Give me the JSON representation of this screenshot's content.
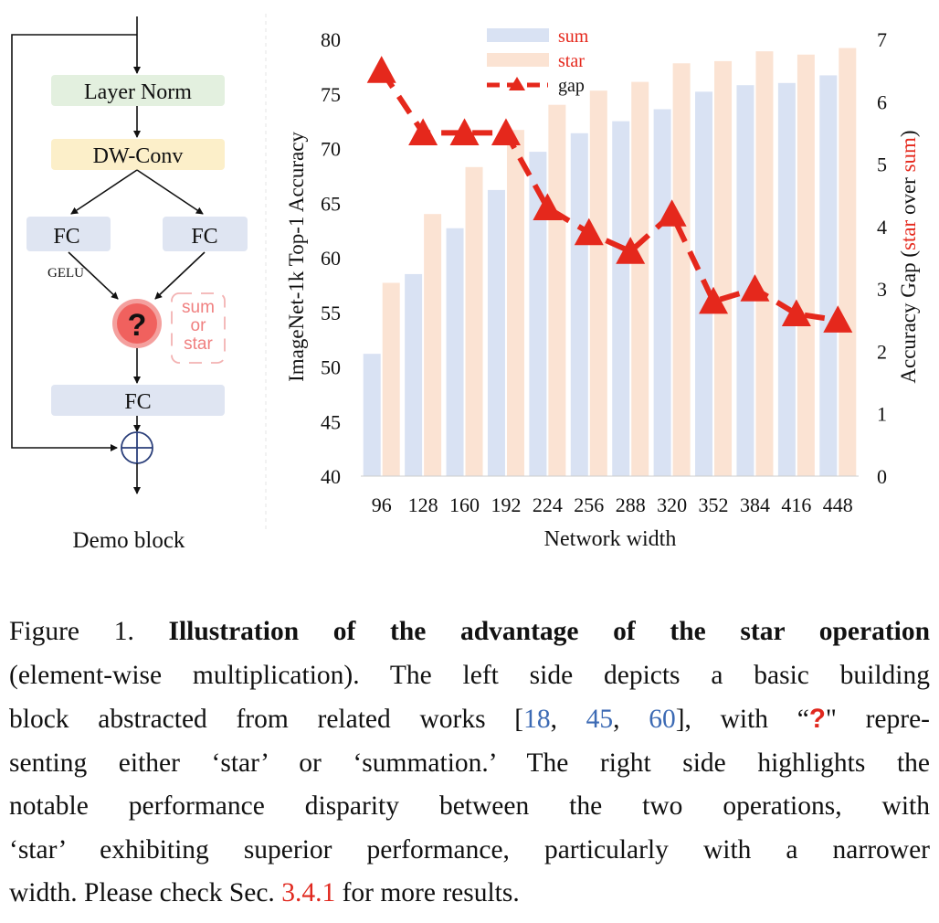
{
  "block": {
    "layer_norm": "Layer Norm",
    "dw_conv": "DW-Conv",
    "fc_left": "FC",
    "fc_right": "FC",
    "gelu": "GELU",
    "op_symbol": "?",
    "op_options": [
      "sum",
      "or",
      "star"
    ],
    "fc_bottom": "FC",
    "caption": "Demo block",
    "colors": {
      "layer_norm": "#e3f0df",
      "dw_conv": "#fcefc9",
      "fc": "#dfe5f2",
      "op": "#f0615e",
      "op_options": "#f08080"
    }
  },
  "chart_data": {
    "type": "bar",
    "categories": [
      "96",
      "128",
      "160",
      "192",
      "224",
      "256",
      "288",
      "320",
      "352",
      "384",
      "416",
      "448"
    ],
    "xlabel": "Network width",
    "ylabel": "ImageNet-1k Top-1 Accuracy",
    "ylim": [
      40,
      80
    ],
    "yticks": [
      "40",
      "45",
      "50",
      "55",
      "60",
      "65",
      "70",
      "75",
      "80"
    ],
    "y2label_parts": [
      "Accuracy Gap (",
      "star",
      " over ",
      "sum",
      ")"
    ],
    "y2lim": [
      0,
      7
    ],
    "y2ticks": [
      "0",
      "1",
      "2",
      "3",
      "4",
      "5",
      "6",
      "7"
    ],
    "legend_position": "top-center",
    "series": [
      {
        "name": "sum",
        "kind": "bar",
        "color": "#d9e2f3",
        "values": [
          51.2,
          58.5,
          62.7,
          66.2,
          69.7,
          71.4,
          72.5,
          73.6,
          75.2,
          75.8,
          76.0,
          76.7
        ]
      },
      {
        "name": "star",
        "kind": "bar",
        "color": "#fbe3d3",
        "values": [
          57.7,
          64.0,
          68.3,
          71.7,
          74.0,
          75.3,
          76.1,
          77.8,
          78.0,
          78.9,
          78.6,
          79.2
        ]
      },
      {
        "name": "gap",
        "kind": "line",
        "color": "#e5281c",
        "axis": "right",
        "values": [
          6.5,
          5.5,
          5.5,
          5.5,
          4.3,
          3.9,
          3.6,
          4.2,
          2.8,
          3.0,
          2.6,
          2.5
        ]
      }
    ]
  },
  "caption": {
    "line1_prefix": "Figure 1. ",
    "line1_bold": "Illustration of the advantage of the star operation",
    "line2": "(element-wise multiplication). The left side depicts a basic building",
    "line3_a": "block abstracted from related works [",
    "ref1": "18",
    "sep1": ", ",
    "ref2": "45",
    "sep2": ", ",
    "ref3": "60",
    "line3_b": "], with “",
    "qmark": "?",
    "line3_c": "\" repre-",
    "line4": "senting either ‘star’ or ‘summation.’ The right side highlights the",
    "line5": "notable performance disparity between the two operations, with",
    "line6": "‘star’ exhibiting superior performance, particularly with a narrower",
    "line7_a": "width. Please check Sec. ",
    "sec_ref": "3.4.1",
    "line7_b": " for more results."
  }
}
